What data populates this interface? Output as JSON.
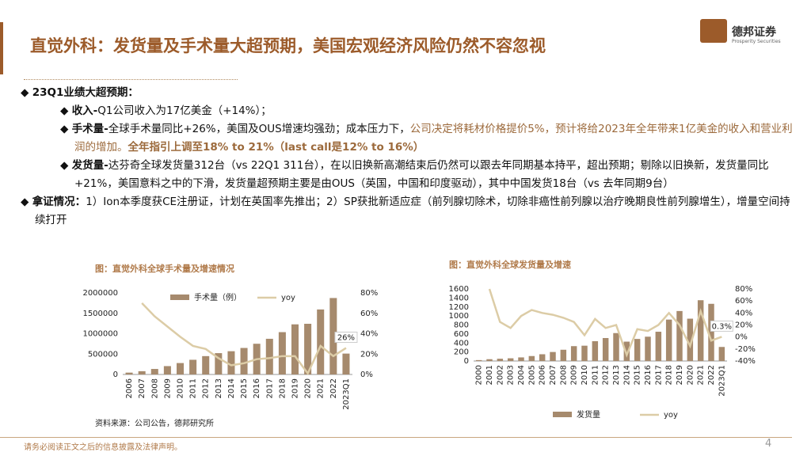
{
  "header": {
    "title": "直觉外科：发货量及手术量大超预期，美国宏观经济风险仍然不容忽视",
    "logo": "德邦证券",
    "logo_sub": "Prosperity Securities"
  },
  "paragraphs": [
    {
      "level": 1,
      "segments": [
        {
          "text": "23Q1业绩大超预期：",
          "style": "bold"
        }
      ]
    },
    {
      "level": 2,
      "segments": [
        {
          "text": "收入-",
          "style": "bold"
        },
        {
          "text": "Q1公司收入为17亿美金（+14%）；",
          "style": "normal"
        }
      ]
    },
    {
      "level": 2,
      "segments": [
        {
          "text": "手术量-",
          "style": "bold"
        },
        {
          "text": "全球手术量同比+26%，美国及OUS增速均强劲；成本压力下，",
          "style": "normal"
        },
        {
          "text": "公司决定将耗材价格提价5%，预计将给2023年全年带来1亿美金的收入和营业利润的增加。",
          "style": "accent"
        },
        {
          "text": "全年指引上调至18% to 21%（last call是12% to 16%）",
          "style": "accent-bold"
        }
      ]
    },
    {
      "level": 2,
      "segments": [
        {
          "text": "发货量-",
          "style": "bold"
        },
        {
          "text": "达芬奇全球发货量312台（vs 22Q1 311台），在以旧换新高潮结束后仍然可以跟去年同期基本持平，超出预期；剔除以旧换新，发货量同比+21%，美国意料之中的下滑，发货量超预期主要是由OUS（英国，中国和印度驱动），其中中国发货18台（vs 去年同期9台）",
          "style": "normal"
        }
      ]
    },
    {
      "level": 1,
      "segments": [
        {
          "text": "拿证情况：",
          "style": "bold"
        },
        {
          "text": "1）Ion本季度获CE注册证，计划在英国率先推出；2）SP获批新适应症（前列腺切除术，切除非癌性前列腺以治疗晚期良性前列腺增生），增量空间持续打开",
          "style": "normal"
        }
      ]
    }
  ],
  "chart_data": [
    {
      "type": "bar",
      "title": "图：直觉外科全球手术量及增速情况",
      "legend": "top",
      "categories": [
        "2006",
        "2007",
        "2008",
        "2009",
        "2010",
        "2011",
        "2012",
        "2013",
        "2014",
        "2015",
        "2016",
        "2017",
        "2018",
        "2019",
        "2020",
        "2021",
        "2022",
        "2023Q1"
      ],
      "series": [
        {
          "name": "手术量（例）",
          "type": "bar",
          "color": "#a68a6d",
          "values": [
            45000,
            80000,
            135000,
            205000,
            280000,
            360000,
            450000,
            523000,
            570000,
            650000,
            753000,
            875000,
            1038000,
            1229000,
            1243000,
            1594000,
            1875000,
            512000
          ]
        },
        {
          "name": "yoy",
          "type": "line",
          "axis": "y2",
          "color": "#dccca6",
          "values": [
            null,
            70,
            57,
            47,
            37,
            28,
            25,
            16,
            9,
            11,
            15,
            16,
            18,
            18,
            1,
            28,
            18,
            26
          ]
        }
      ],
      "ylim": [
        0,
        2000000
      ],
      "yticks": [
        0,
        500000,
        1000000,
        1500000,
        2000000
      ],
      "y2lim": [
        0,
        80
      ],
      "y2ticks": [
        {
          "value": 0,
          "label": "0%"
        },
        {
          "value": 20,
          "label": "20%"
        },
        {
          "value": 40,
          "label": "40%"
        },
        {
          "value": 60,
          "label": "60%"
        },
        {
          "value": 80,
          "label": "80%"
        }
      ],
      "annotation": "26%",
      "source": "资料来源：公司公告，德邦研究所"
    },
    {
      "type": "bar",
      "title": "图：直觉外科全球发货量及增速",
      "legend": "bottom",
      "categories": [
        "2000",
        "2001",
        "2002",
        "2003",
        "2004",
        "2005",
        "2006",
        "2007",
        "2008",
        "2009",
        "2010",
        "2011",
        "2012",
        "2013",
        "2014",
        "2015",
        "2016",
        "2017",
        "2018",
        "2019",
        "2020",
        "2021",
        "2022",
        "2023Q1"
      ],
      "series": [
        {
          "name": "发货量",
          "type": "bar",
          "color": "#a68a6d",
          "values": [
            20,
            40,
            50,
            60,
            80,
            110,
            150,
            200,
            250,
            330,
            340,
            440,
            510,
            620,
            430,
            490,
            540,
            650,
            920,
            1110,
            940,
            1350,
            1270,
            312
          ]
        },
        {
          "name": "yoy",
          "type": "line",
          "axis": "y2",
          "color": "#dccca6",
          "values": [
            null,
            80,
            25,
            15,
            35,
            45,
            40,
            37,
            32,
            25,
            3,
            30,
            15,
            20,
            -30,
            13,
            10,
            20,
            40,
            20,
            -15,
            43,
            -6,
            0.3
          ]
        }
      ],
      "ylim": [
        0,
        1600
      ],
      "yticks": [
        0,
        200,
        400,
        600,
        800,
        1000,
        1200,
        1400,
        1600
      ],
      "y2lim": [
        -40,
        80
      ],
      "y2ticks": [
        {
          "value": -40,
          "label": "-40%"
        },
        {
          "value": -20,
          "label": "-20%"
        },
        {
          "value": 0,
          "label": "0%"
        },
        {
          "value": 20,
          "label": "20%"
        },
        {
          "value": 40,
          "label": "40%"
        },
        {
          "value": 60,
          "label": "60%"
        },
        {
          "value": 80,
          "label": "80%"
        }
      ],
      "annotation": "0.3%"
    }
  ],
  "footer": {
    "disclaimer": "请务必阅读正文之后的信息披露及法律声明。",
    "page": "4"
  }
}
